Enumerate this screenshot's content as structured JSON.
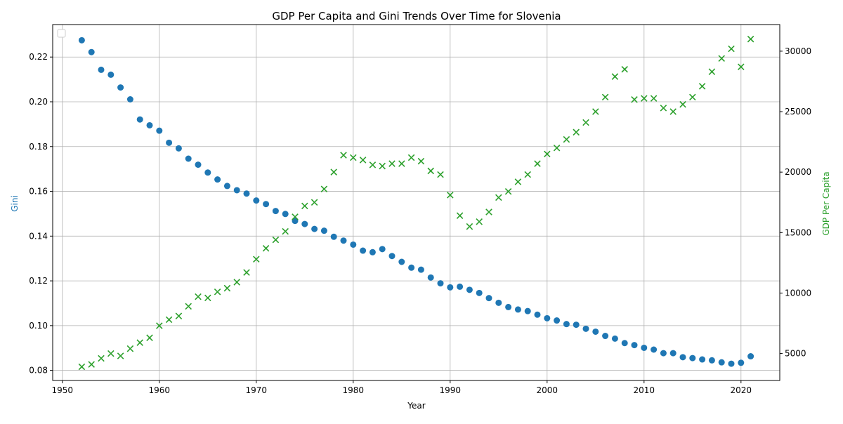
{
  "chart_data": {
    "type": "scatter",
    "title": "GDP Per Capita and Gini Trends Over Time for Slovenia",
    "xlabel": "Year",
    "ylabel_left": "Gini",
    "ylabel_right": "GDP Per Capita",
    "xlim": [
      1949,
      2024
    ],
    "ylim_left": [
      0.0755,
      0.2345
    ],
    "ylim_right": [
      2770,
      32200
    ],
    "xticks": [
      1950,
      1960,
      1970,
      1980,
      1990,
      2000,
      2010,
      2020
    ],
    "yticks_left": [
      0.08,
      0.1,
      0.12,
      0.14,
      0.16,
      0.18,
      0.2,
      0.22
    ],
    "yticks_left_labels": [
      "0.08",
      "0.10",
      "0.12",
      "0.14",
      "0.16",
      "0.18",
      "0.20",
      "0.22"
    ],
    "yticks_right": [
      5000,
      10000,
      15000,
      20000,
      25000,
      30000
    ],
    "grid": true,
    "legend": "top-left",
    "colors": {
      "gini": "#1f77b4",
      "gdp": "#2ca02c",
      "grid": "#b0b0b0",
      "axis": "#000000"
    },
    "x": [
      1952,
      1953,
      1954,
      1955,
      1956,
      1957,
      1958,
      1959,
      1960,
      1961,
      1962,
      1963,
      1964,
      1965,
      1966,
      1967,
      1968,
      1969,
      1970,
      1971,
      1972,
      1973,
      1974,
      1975,
      1976,
      1977,
      1978,
      1979,
      1980,
      1981,
      1982,
      1983,
      1984,
      1985,
      1986,
      1987,
      1988,
      1989,
      1990,
      1991,
      1992,
      1993,
      1994,
      1995,
      1996,
      1997,
      1998,
      1999,
      2000,
      2001,
      2002,
      2003,
      2004,
      2005,
      2006,
      2007,
      2008,
      2009,
      2010,
      2011,
      2012,
      2013,
      2014,
      2015,
      2016,
      2017,
      2018,
      2019,
      2020,
      2021
    ],
    "series": [
      {
        "key": "gini",
        "axis": "left",
        "marker": "circle",
        "values": [
          0.2275,
          0.2222,
          0.2143,
          0.2121,
          0.2064,
          0.2011,
          0.1921,
          0.1895,
          0.1871,
          0.1817,
          0.1792,
          0.1746,
          0.1719,
          0.1684,
          0.1653,
          0.1624,
          0.1605,
          0.159,
          0.1559,
          0.1543,
          0.1512,
          0.1499,
          0.1468,
          0.1454,
          0.1432,
          0.1424,
          0.1397,
          0.138,
          0.1362,
          0.1335,
          0.1328,
          0.1342,
          0.1311,
          0.1285,
          0.1259,
          0.125,
          0.1215,
          0.1189,
          0.1171,
          0.1174,
          0.116,
          0.1146,
          0.1123,
          0.1102,
          0.1083,
          0.1072,
          0.1065,
          0.1049,
          0.1033,
          0.1023,
          0.1007,
          0.1004,
          0.0986,
          0.0973,
          0.0954,
          0.0942,
          0.0922,
          0.0913,
          0.0901,
          0.0893,
          0.0877,
          0.0877,
          0.0859,
          0.0855,
          0.0849,
          0.0845,
          0.0836,
          0.083,
          0.0834,
          0.0863
        ]
      },
      {
        "key": "gdp",
        "axis": "right",
        "marker": "x",
        "values": [
          3900,
          4100,
          4600,
          5000,
          4800,
          5400,
          5900,
          6300,
          7300,
          7800,
          8100,
          8900,
          9700,
          9600,
          10100,
          10400,
          10900,
          11700,
          12800,
          13700,
          14400,
          15100,
          16300,
          17200,
          17500,
          18600,
          20000,
          21400,
          21200,
          21000,
          20600,
          20500,
          20700,
          20700,
          21200,
          20900,
          20100,
          19800,
          18100,
          16400,
          15500,
          15900,
          16700,
          17900,
          18400,
          19200,
          19800,
          20700,
          21500,
          22000,
          22700,
          23300,
          24100,
          25000,
          26200,
          27900,
          28500,
          26000,
          26100,
          26100,
          25300,
          25000,
          25600,
          26200,
          27100,
          28300,
          29400,
          30200,
          28700,
          31000
        ]
      }
    ]
  }
}
